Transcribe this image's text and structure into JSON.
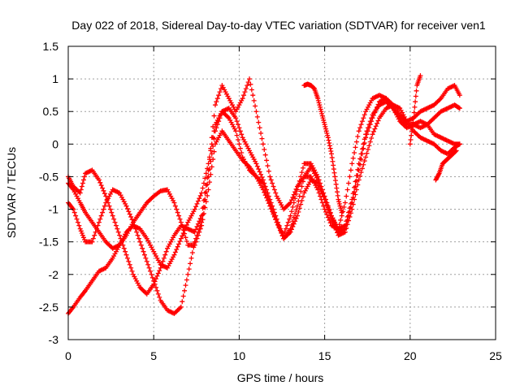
{
  "chart_data": {
    "type": "scatter",
    "title": "Day 022 of 2018, Sidereal Day-to-day VTEC variation (SDTVAR) for receiver ven1",
    "xlabel": "GPS time / hours",
    "ylabel": "SDTVAR / TECUs",
    "xlim": [
      0,
      25
    ],
    "ylim": [
      -3,
      1.5
    ],
    "xticks": [
      "0",
      "5",
      "10",
      "15",
      "20",
      "25"
    ],
    "yticks": [
      "1.5",
      "1",
      "0.5",
      "0",
      "-0.5",
      "-1",
      "-1.5",
      "-2",
      "-2.5",
      "-3"
    ],
    "grid": true,
    "marker": "plus",
    "color": "#ff0000",
    "series": [
      {
        "x": [
          0.0,
          0.3,
          0.7,
          1.0,
          1.4,
          1.8,
          2.2,
          2.6,
          3.0,
          3.4,
          3.8,
          4.2,
          4.6,
          5.0,
          5.4,
          5.8,
          6.2,
          6.6,
          7.0,
          7.4,
          7.8,
          8.2,
          8.6,
          9.0,
          9.4,
          9.8,
          10.2,
          10.6,
          11.0,
          11.4,
          11.8,
          12.2,
          12.6,
          13.0,
          13.4,
          13.8,
          14.2,
          14.6,
          15.0,
          15.4,
          15.8,
          16.2,
          16.6,
          17.0,
          17.4,
          17.8,
          18.2,
          18.6,
          19.0,
          19.4,
          19.8,
          20.2,
          20.6,
          21.0,
          21.4,
          21.8,
          22.2,
          22.6,
          22.9
        ],
        "y": [
          -0.9,
          -1.0,
          -1.3,
          -1.5,
          -1.5,
          -1.2,
          -0.9,
          -0.7,
          -0.75,
          -0.95,
          -1.2,
          -1.5,
          -1.8,
          -2.1,
          -2.4,
          -2.55,
          -2.6,
          -2.5,
          -2.0,
          -1.5,
          -1.2,
          -0.5,
          0.2,
          0.5,
          0.4,
          0.2,
          -0.2,
          -0.4,
          -0.5,
          -0.6,
          -0.9,
          -1.2,
          -1.4,
          -1.1,
          -0.7,
          -0.3,
          -0.3,
          -0.5,
          -0.8,
          -1.1,
          -1.35,
          -1.3,
          -0.9,
          -0.4,
          0.1,
          0.4,
          0.65,
          0.7,
          0.6,
          0.45,
          0.35,
          0.4,
          0.5,
          0.55,
          0.6,
          0.7,
          0.85,
          0.9,
          0.75
        ]
      },
      {
        "x": [
          0.0,
          0.3,
          0.7,
          1.0,
          1.4,
          1.8,
          2.2,
          2.6,
          3.0,
          3.4,
          3.8,
          4.2,
          4.6,
          5.0,
          5.4,
          5.8,
          6.2,
          6.6,
          7.0,
          7.4,
          7.8,
          8.2,
          8.6,
          9.0,
          9.4,
          9.8,
          10.2,
          10.6,
          11.0,
          11.4,
          11.8,
          12.2,
          12.6,
          13.0,
          13.4,
          13.8,
          14.2,
          14.6,
          15.0,
          15.4,
          15.8,
          16.2,
          16.6,
          17.0,
          17.4,
          17.8,
          18.2,
          18.6,
          19.0,
          19.4,
          19.8,
          20.2,
          20.6,
          21.0,
          21.4,
          21.8,
          22.2,
          22.6,
          22.9
        ],
        "y": [
          -2.6,
          -2.5,
          -2.35,
          -2.25,
          -2.1,
          -1.95,
          -1.9,
          -1.75,
          -1.55,
          -1.35,
          -1.25,
          -1.3,
          -1.45,
          -1.65,
          -1.85,
          -1.9,
          -1.7,
          -1.45,
          -1.2,
          -1.0,
          -0.75,
          -0.3,
          0.3,
          0.5,
          0.55,
          0.4,
          0.1,
          -0.1,
          -0.3,
          -0.55,
          -0.85,
          -1.15,
          -1.45,
          -1.3,
          -0.95,
          -0.5,
          -0.35,
          -0.55,
          -0.85,
          -1.1,
          -1.3,
          -1.25,
          -0.85,
          -0.3,
          0.15,
          0.45,
          0.6,
          0.65,
          0.55,
          0.35,
          0.25,
          0.3,
          0.35,
          0.3,
          0.15,
          0.1,
          0.05,
          0.0,
          0.0
        ]
      },
      {
        "x": [
          0.0,
          0.3,
          0.7,
          1.0,
          1.4,
          1.8,
          2.2,
          2.6,
          3.0,
          3.4,
          3.8,
          4.2,
          4.6,
          5.0,
          5.4,
          5.8,
          6.2,
          6.6,
          7.0,
          7.4,
          7.8,
          8.2,
          8.6,
          9.0,
          9.4,
          9.8,
          10.2,
          10.6,
          11.0,
          11.4,
          11.8,
          12.2,
          12.6,
          13.0,
          13.4,
          13.8,
          14.2,
          14.6,
          15.0,
          15.4,
          15.8,
          16.2,
          16.6,
          17.0,
          17.4,
          17.8,
          18.2,
          18.6,
          19.0,
          19.4,
          19.8,
          20.2,
          20.6,
          21.0,
          21.4,
          21.8,
          22.2,
          22.6,
          22.9
        ],
        "y": [
          -0.5,
          -0.65,
          -0.75,
          -0.45,
          -0.4,
          -0.55,
          -0.8,
          -1.1,
          -1.4,
          -1.7,
          -2.0,
          -2.2,
          -2.3,
          -2.15,
          -1.9,
          -1.6,
          -1.4,
          -1.25,
          -1.3,
          -1.35,
          -1.1,
          -0.4,
          0.6,
          0.9,
          0.7,
          0.5,
          0.7,
          1.0,
          0.5,
          0.0,
          -0.5,
          -0.8,
          -1.0,
          -0.9,
          -0.65,
          -0.5,
          -0.5,
          -0.7,
          -1.0,
          -1.25,
          -1.3,
          -0.9,
          -0.3,
          0.2,
          0.5,
          0.7,
          0.75,
          0.7,
          0.55,
          0.4,
          0.3,
          0.3,
          0.25,
          0.3,
          0.4,
          0.5,
          0.55,
          0.6,
          0.55
        ]
      },
      {
        "x": [
          0.0,
          0.3,
          0.7,
          1.0,
          1.4,
          1.8,
          2.2,
          2.6,
          3.0,
          3.4,
          3.8,
          4.2,
          4.6,
          5.0,
          5.4,
          5.8,
          6.2,
          6.6,
          7.0,
          7.4,
          7.8,
          8.2,
          8.6,
          9.0,
          9.4,
          9.8,
          10.2,
          10.6,
          11.0,
          11.4,
          11.8,
          12.2,
          12.6,
          13.0,
          13.4,
          13.8,
          14.2,
          14.6,
          15.0,
          15.4,
          15.8,
          16.2,
          16.6,
          17.0,
          17.4,
          17.8,
          18.2,
          18.6,
          19.0,
          19.4,
          19.8,
          20.2,
          20.6,
          21.0,
          21.4,
          21.8,
          22.2,
          22.6,
          22.9
        ],
        "y": [
          -0.6,
          -0.7,
          -0.9,
          -1.05,
          -1.2,
          -1.35,
          -1.5,
          -1.6,
          -1.55,
          -1.4,
          -1.2,
          -1.05,
          -0.9,
          -0.8,
          -0.72,
          -0.7,
          -0.9,
          -1.2,
          -1.55,
          -1.55,
          -1.25,
          -0.7,
          0.0,
          0.2,
          0.05,
          -0.1,
          -0.25,
          -0.35,
          -0.5,
          -0.7,
          -0.95,
          -1.2,
          -1.45,
          -1.35,
          -1.1,
          -0.75,
          -0.55,
          -0.6,
          -0.85,
          -1.15,
          -1.4,
          -1.35,
          -1.0,
          -0.55,
          -0.2,
          0.15,
          0.4,
          0.55,
          0.6,
          0.55,
          0.35,
          0.2,
          0.1,
          0.05,
          0.0,
          -0.1,
          -0.15,
          -0.05,
          0.0
        ]
      },
      {
        "x": [
          13.8,
          14.0,
          14.2,
          14.4,
          14.6,
          14.8,
          15.0,
          15.2,
          15.4,
          15.6,
          15.8,
          16.0
        ],
        "y": [
          0.9,
          0.92,
          0.9,
          0.85,
          0.7,
          0.5,
          0.3,
          0.1,
          -0.15,
          -0.5,
          -0.85,
          -1.05
        ]
      },
      {
        "x": [
          21.5,
          21.7,
          21.9,
          22.1,
          22.3,
          22.5,
          22.7
        ],
        "y": [
          -0.55,
          -0.45,
          -0.3,
          -0.25,
          -0.2,
          -0.15,
          -0.1
        ]
      },
      {
        "x": [
          20.0,
          20.2,
          20.4,
          20.6
        ],
        "y": [
          0.0,
          0.4,
          0.9,
          1.05
        ]
      }
    ]
  }
}
